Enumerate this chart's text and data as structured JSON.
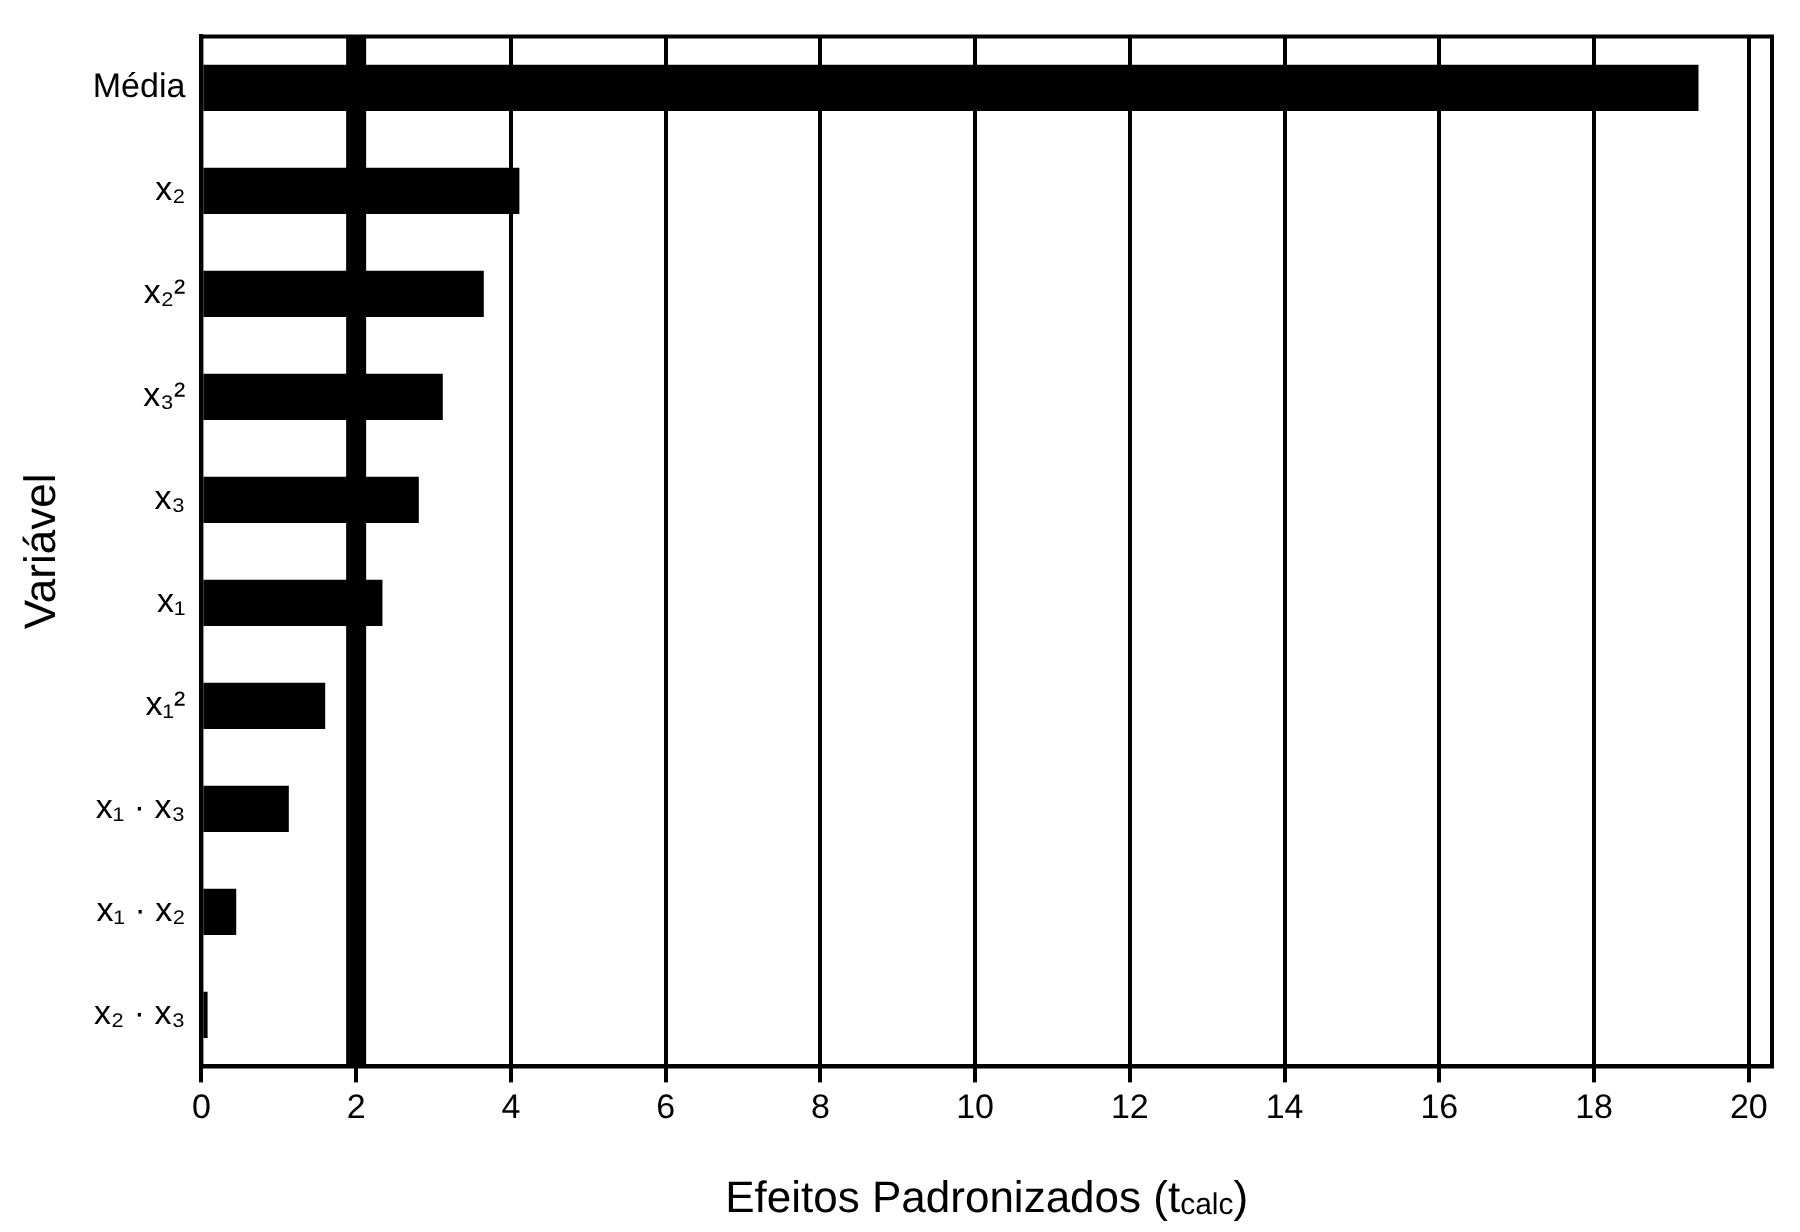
{
  "chart_data": {
    "type": "bar",
    "orientation": "horizontal",
    "xlabel": "Efeitos Padronizados (t$_{calc}$)",
    "ylabel": "Variável",
    "categories": [
      "Média",
      "x₂",
      "x₂²",
      "x₃²",
      "x₃",
      "x₁",
      "x₁²",
      "x₁ · x₃",
      "x₁ · x₂",
      "x₂ · x₃"
    ],
    "values": [
      19.35,
      4.11,
      3.65,
      3.12,
      2.81,
      2.34,
      1.6,
      1.13,
      0.45,
      0.08
    ],
    "color": "#000000",
    "xlim": [
      0,
      20.3
    ],
    "xticks": [
      0,
      2,
      4,
      6,
      8,
      10,
      12,
      14,
      16,
      18,
      20
    ],
    "grid": "x",
    "ref_lines": [
      {
        "axis": "x",
        "value": 2.0,
        "color": "#000000"
      }
    ]
  }
}
